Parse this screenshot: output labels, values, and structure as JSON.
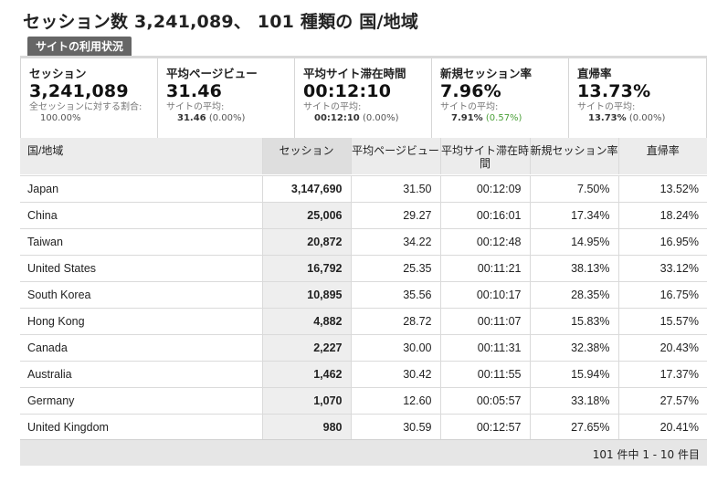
{
  "page": {
    "title": "セッション数 3,241,089、 101 種類の 国/地域"
  },
  "tab": {
    "label": "サイトの利用状況"
  },
  "summary": {
    "sessions": {
      "label": "セッション",
      "value": "3,241,089",
      "sub1": "全セッションに対する割合:",
      "sub2": "100.00%"
    },
    "pageviews": {
      "label": "平均ページビュー",
      "value": "31.46",
      "sub1": "サイトの平均:",
      "avg": "31.46",
      "diff": "(0.00%)"
    },
    "duration": {
      "label": "平均サイト滞在時間",
      "value": "00:12:10",
      "sub1": "サイトの平均:",
      "avg": "00:12:10",
      "diff": "(0.00%)"
    },
    "newsessions": {
      "label": "新規セッション率",
      "value": "7.96%",
      "sub1": "サイトの平均:",
      "avg": "7.91%",
      "diff": "(0.57%)"
    },
    "bounce": {
      "label": "直帰率",
      "value": "13.73%",
      "sub1": "サイトの平均:",
      "avg": "13.73%",
      "diff": "(0.00%)"
    }
  },
  "table": {
    "headers": {
      "country": "国/地域",
      "sessions": "セッション",
      "pageviews": "平均ページビュー",
      "duration": "平均サイト滞在時間",
      "newsessions": "新規セッション率",
      "bounce": "直帰率"
    },
    "rows": [
      {
        "country": "Japan",
        "sessions": "3,147,690",
        "pageviews": "31.50",
        "duration": "00:12:09",
        "newsessions": "7.50%",
        "bounce": "13.52%"
      },
      {
        "country": "China",
        "sessions": "25,006",
        "pageviews": "29.27",
        "duration": "00:16:01",
        "newsessions": "17.34%",
        "bounce": "18.24%"
      },
      {
        "country": "Taiwan",
        "sessions": "20,872",
        "pageviews": "34.22",
        "duration": "00:12:48",
        "newsessions": "14.95%",
        "bounce": "16.95%"
      },
      {
        "country": "United States",
        "sessions": "16,792",
        "pageviews": "25.35",
        "duration": "00:11:21",
        "newsessions": "38.13%",
        "bounce": "33.12%"
      },
      {
        "country": "South Korea",
        "sessions": "10,895",
        "pageviews": "35.56",
        "duration": "00:10:17",
        "newsessions": "28.35%",
        "bounce": "16.75%"
      },
      {
        "country": "Hong Kong",
        "sessions": "4,882",
        "pageviews": "28.72",
        "duration": "00:11:07",
        "newsessions": "15.83%",
        "bounce": "15.57%"
      },
      {
        "country": "Canada",
        "sessions": "2,227",
        "pageviews": "30.00",
        "duration": "00:11:31",
        "newsessions": "32.38%",
        "bounce": "20.43%"
      },
      {
        "country": "Australia",
        "sessions": "1,462",
        "pageviews": "30.42",
        "duration": "00:11:55",
        "newsessions": "15.94%",
        "bounce": "17.37%"
      },
      {
        "country": "Germany",
        "sessions": "1,070",
        "pageviews": "12.60",
        "duration": "00:05:57",
        "newsessions": "33.18%",
        "bounce": "27.57%"
      },
      {
        "country": "United Kingdom",
        "sessions": "980",
        "pageviews": "30.59",
        "duration": "00:12:57",
        "newsessions": "27.65%",
        "bounce": "20.41%"
      }
    ]
  },
  "footer": {
    "pager": "101 件中 1 - 10 件目"
  },
  "colors": {
    "tab_bg": "#666666",
    "positive": "#4a9f38",
    "header_bg": "#ececec",
    "footer_bg": "#e6e6e6"
  }
}
